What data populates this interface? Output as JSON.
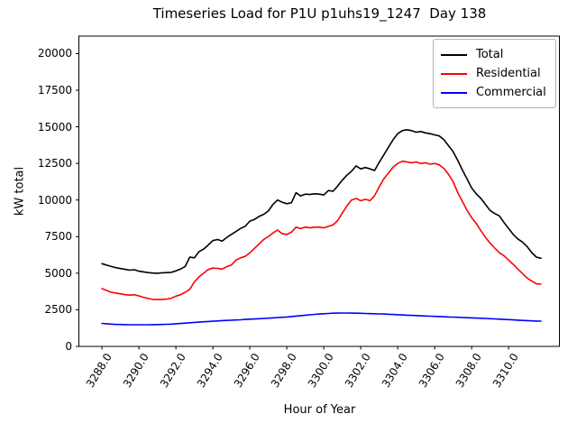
{
  "chart_data": {
    "type": "line",
    "title": "Timeseries Load for P1U p1uhs19_1247  Day 138",
    "xlabel": "Hour of Year",
    "ylabel": "kW total",
    "grid": false,
    "legend_position": "upper right",
    "xlim": [
      3286.75,
      3312.75
    ],
    "ylim": [
      0,
      21200
    ],
    "x_ticks": [
      3288,
      3290,
      3292,
      3294,
      3296,
      3298,
      3300,
      3302,
      3304,
      3306,
      3308,
      3310
    ],
    "x_tick_labels": [
      "3288.0",
      "3290.0",
      "3292.0",
      "3294.0",
      "3296.0",
      "3298.0",
      "3300.0",
      "3302.0",
      "3304.0",
      "3306.0",
      "3308.0",
      "3310.0"
    ],
    "y_ticks": [
      0,
      2500,
      5000,
      7500,
      10000,
      12500,
      15000,
      17500,
      20000
    ],
    "y_tick_labels": [
      "0",
      "2500",
      "5000",
      "7500",
      "10000",
      "12500",
      "15000",
      "17500",
      "20000"
    ],
    "x_start": 3288.0,
    "x_step": 0.25,
    "x_count": 96,
    "series": [
      {
        "name": "Total",
        "color": "#000000",
        "values": [
          5650,
          5550,
          5460,
          5380,
          5320,
          5260,
          5210,
          5240,
          5140,
          5090,
          5040,
          5010,
          5000,
          5030,
          5040,
          5060,
          5160,
          5290,
          5460,
          6100,
          6050,
          6480,
          6650,
          6930,
          7230,
          7300,
          7200,
          7440,
          7650,
          7850,
          8060,
          8200,
          8560,
          8680,
          8880,
          9020,
          9250,
          9700,
          10000,
          9850,
          9750,
          9820,
          10500,
          10280,
          10400,
          10380,
          10430,
          10400,
          10350,
          10650,
          10600,
          10950,
          11350,
          11700,
          11960,
          12330,
          12130,
          12220,
          12130,
          12020,
          12580,
          13090,
          13610,
          14120,
          14530,
          14740,
          14800,
          14740,
          14630,
          14680,
          14590,
          14530,
          14450,
          14380,
          14120,
          13710,
          13300,
          12700,
          12050,
          11450,
          10830,
          10420,
          10110,
          9700,
          9290,
          9080,
          8920,
          8470,
          8060,
          7650,
          7340,
          7130,
          6820,
          6410,
          6100,
          6020
        ]
      },
      {
        "name": "Residential",
        "color": "#ff0000",
        "values": [
          3950,
          3820,
          3700,
          3640,
          3590,
          3530,
          3500,
          3530,
          3450,
          3350,
          3270,
          3210,
          3200,
          3210,
          3230,
          3290,
          3430,
          3530,
          3700,
          3900,
          4400,
          4750,
          5000,
          5250,
          5350,
          5330,
          5280,
          5450,
          5560,
          5900,
          6050,
          6150,
          6400,
          6700,
          7000,
          7300,
          7500,
          7750,
          7950,
          7700,
          7650,
          7800,
          8150,
          8050,
          8150,
          8100,
          8150,
          8150,
          8100,
          8200,
          8300,
          8600,
          9100,
          9600,
          10000,
          10110,
          9950,
          10050,
          9950,
          10300,
          10900,
          11450,
          11850,
          12250,
          12500,
          12650,
          12600,
          12550,
          12600,
          12500,
          12550,
          12450,
          12500,
          12400,
          12150,
          11750,
          11250,
          10500,
          9900,
          9300,
          8800,
          8400,
          7900,
          7450,
          7050,
          6720,
          6400,
          6200,
          5900,
          5600,
          5280,
          4980,
          4670,
          4460,
          4280,
          4250
        ]
      },
      {
        "name": "Commercial",
        "color": "#0000ff",
        "values": [
          1570,
          1545,
          1525,
          1505,
          1495,
          1485,
          1480,
          1478,
          1478,
          1480,
          1482,
          1485,
          1490,
          1500,
          1510,
          1525,
          1545,
          1565,
          1590,
          1615,
          1640,
          1660,
          1680,
          1700,
          1720,
          1740,
          1760,
          1775,
          1790,
          1805,
          1820,
          1840,
          1860,
          1875,
          1890,
          1910,
          1930,
          1950,
          1970,
          1990,
          2010,
          2040,
          2070,
          2100,
          2130,
          2160,
          2185,
          2210,
          2230,
          2250,
          2265,
          2275,
          2280,
          2280,
          2275,
          2270,
          2260,
          2250,
          2240,
          2230,
          2220,
          2210,
          2195,
          2180,
          2165,
          2150,
          2135,
          2120,
          2105,
          2090,
          2075,
          2062,
          2050,
          2038,
          2025,
          2012,
          2000,
          1988,
          1975,
          1962,
          1950,
          1938,
          1925,
          1910,
          1895,
          1880,
          1862,
          1845,
          1828,
          1810,
          1792,
          1775,
          1760,
          1745,
          1732,
          1725
        ]
      }
    ]
  }
}
